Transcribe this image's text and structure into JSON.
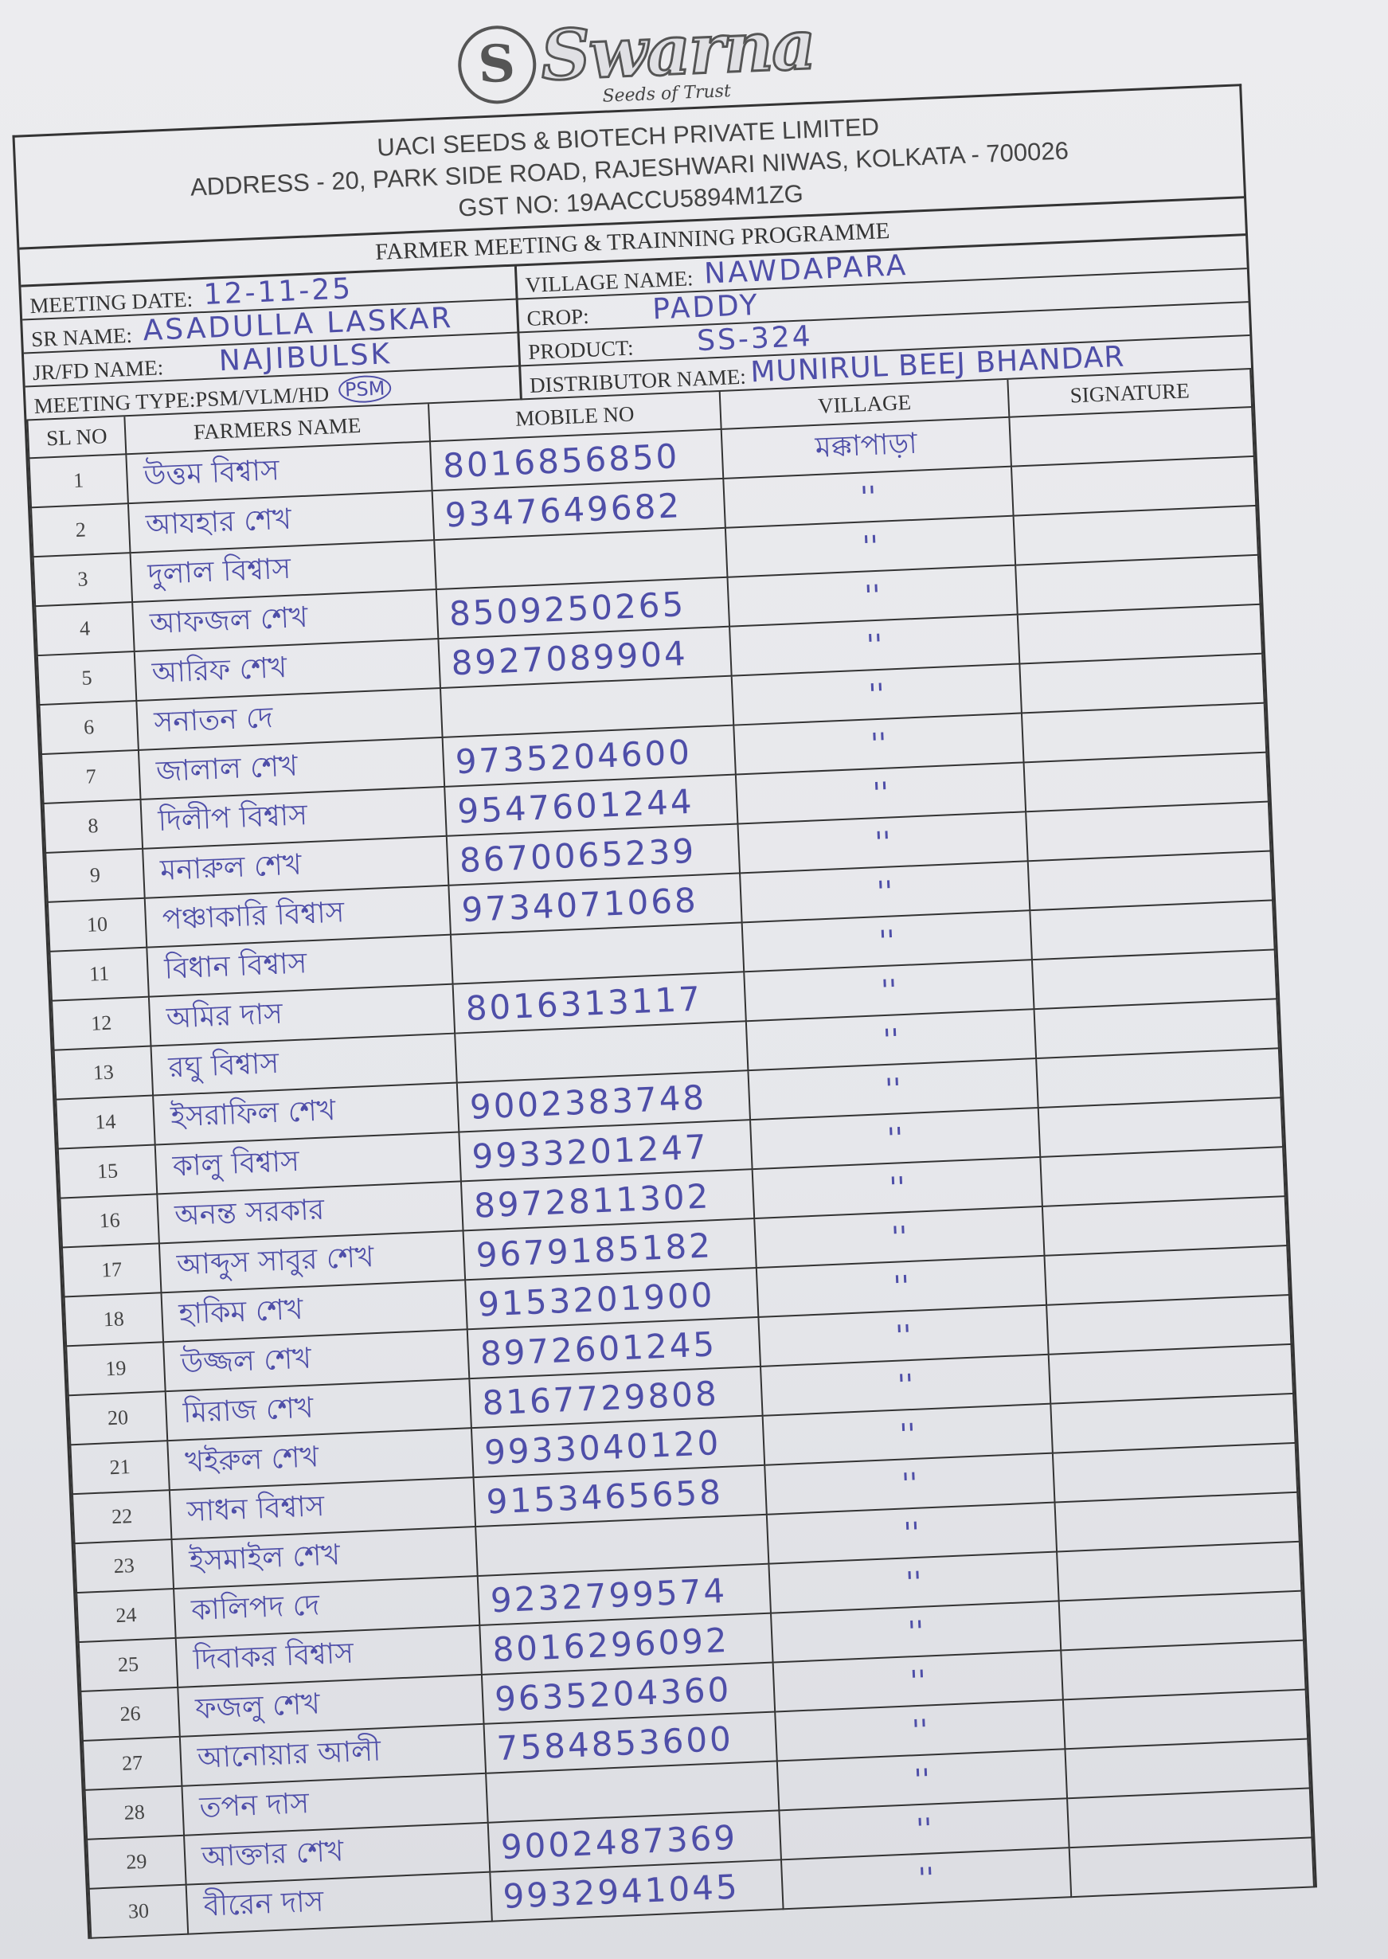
{
  "logo": {
    "brand": "Swarna",
    "tagline": "Seeds of Trust"
  },
  "company": {
    "name": "UACI SEEDS & BIOTECH PRIVATE LIMITED",
    "address": "ADDRESS - 20, PARK SIDE ROAD, RAJESHWARI NIWAS, KOLKATA - 700026",
    "gst": "GST NO: 19AACCU5894M1ZG"
  },
  "programme_title": "FARMER MEETING & TRAINNING PROGRAMME",
  "fields": {
    "meeting_date_label": "MEETING DATE:",
    "meeting_date": "12-11-25",
    "village_name_label": "VILLAGE NAME:",
    "village_name": "NAWDAPARA",
    "sr_name_label": "SR NAME:",
    "sr_name": "ASADULLA LASKAR",
    "crop_label": "CROP:",
    "crop": "PADDY",
    "jr_fd_name_label": "JR/FD NAME:",
    "jr_fd_name": "NAJIBULSK",
    "product_label": "PRODUCT:",
    "product": "SS-324",
    "meeting_type_label": "MEETING TYPE:PSM/VLM/HD",
    "meeting_type_selected": "PSM",
    "distributor_name_label": "DISTRIBUTOR NAME:",
    "distributor_name": "MUNIRUL BEEJ BHANDAR"
  },
  "table": {
    "headers": [
      "SL NO",
      "FARMERS NAME",
      "MOBILE NO",
      "VILLAGE",
      "SIGNATURE"
    ],
    "rows": [
      {
        "sl": "1",
        "name": "উত্তম বিশ্বাস",
        "mobile": "8016856850",
        "village": "মক্কাপাড়া"
      },
      {
        "sl": "2",
        "name": "আযহার শেখ",
        "mobile": "9347649682",
        "village": "''"
      },
      {
        "sl": "3",
        "name": "দুলাল বিশ্বাস",
        "mobile": "",
        "village": "''"
      },
      {
        "sl": "4",
        "name": "আফজল শেখ",
        "mobile": "8509250265",
        "village": "''"
      },
      {
        "sl": "5",
        "name": "আরিফ শেখ",
        "mobile": "8927089904",
        "village": "''"
      },
      {
        "sl": "6",
        "name": "সনাতন দে",
        "mobile": "",
        "village": "''"
      },
      {
        "sl": "7",
        "name": "জালাল শেখ",
        "mobile": "9735204600",
        "village": "''"
      },
      {
        "sl": "8",
        "name": "দিলীপ বিশ্বাস",
        "mobile": "9547601244",
        "village": "''"
      },
      {
        "sl": "9",
        "name": "মনারুল শেখ",
        "mobile": "8670065239",
        "village": "''"
      },
      {
        "sl": "10",
        "name": "পঞ্চাকারি বিশ্বাস",
        "mobile": "9734071068",
        "village": "''"
      },
      {
        "sl": "11",
        "name": "বিধান বিশ্বাস",
        "mobile": "",
        "village": "''"
      },
      {
        "sl": "12",
        "name": "অমির দাস",
        "mobile": "8016313117",
        "village": "''"
      },
      {
        "sl": "13",
        "name": "রঘু বিশ্বাস",
        "mobile": "",
        "village": "''"
      },
      {
        "sl": "14",
        "name": "ইসরাফিল শেখ",
        "mobile": "9002383748",
        "village": "''"
      },
      {
        "sl": "15",
        "name": "কালু বিশ্বাস",
        "mobile": "9933201247",
        "village": "''"
      },
      {
        "sl": "16",
        "name": "অনন্ত সরকার",
        "mobile": "8972811302",
        "village": "''"
      },
      {
        "sl": "17",
        "name": "আব্দুস সাবুর শেখ",
        "mobile": "9679185182",
        "village": "''"
      },
      {
        "sl": "18",
        "name": "হাকিম শেখ",
        "mobile": "9153201900",
        "village": "''"
      },
      {
        "sl": "19",
        "name": "উজ্জল শেখ",
        "mobile": "8972601245",
        "village": "''"
      },
      {
        "sl": "20",
        "name": "মিরাজ শেখ",
        "mobile": "8167729808",
        "village": "''"
      },
      {
        "sl": "21",
        "name": "খইরুল শেখ",
        "mobile": "9933040120",
        "village": "''"
      },
      {
        "sl": "22",
        "name": "সাধন বিশ্বাস",
        "mobile": "9153465658",
        "village": "''"
      },
      {
        "sl": "23",
        "name": "ইসমাইল শেখ",
        "mobile": "",
        "village": "''"
      },
      {
        "sl": "24",
        "name": "কালিপদ দে",
        "mobile": "9232799574",
        "village": "''"
      },
      {
        "sl": "25",
        "name": "দিবাকর বিশ্বাস",
        "mobile": "8016296092",
        "village": "''"
      },
      {
        "sl": "26",
        "name": "ফজলু শেখ",
        "mobile": "9635204360",
        "village": "''"
      },
      {
        "sl": "27",
        "name": "আনোয়ার আলী",
        "mobile": "7584853600",
        "village": "''"
      },
      {
        "sl": "28",
        "name": "তপন দাস",
        "mobile": "",
        "village": "''"
      },
      {
        "sl": "29",
        "name": "আক্তার শেখ",
        "mobile": "9002487369",
        "village": "''"
      },
      {
        "sl": "30",
        "name": "বীরেন দাস",
        "mobile": "9932941045",
        "village": "''"
      }
    ]
  },
  "colors": {
    "ink": "#4e4ea8",
    "print": "#333333",
    "paper": "#ebebee"
  }
}
